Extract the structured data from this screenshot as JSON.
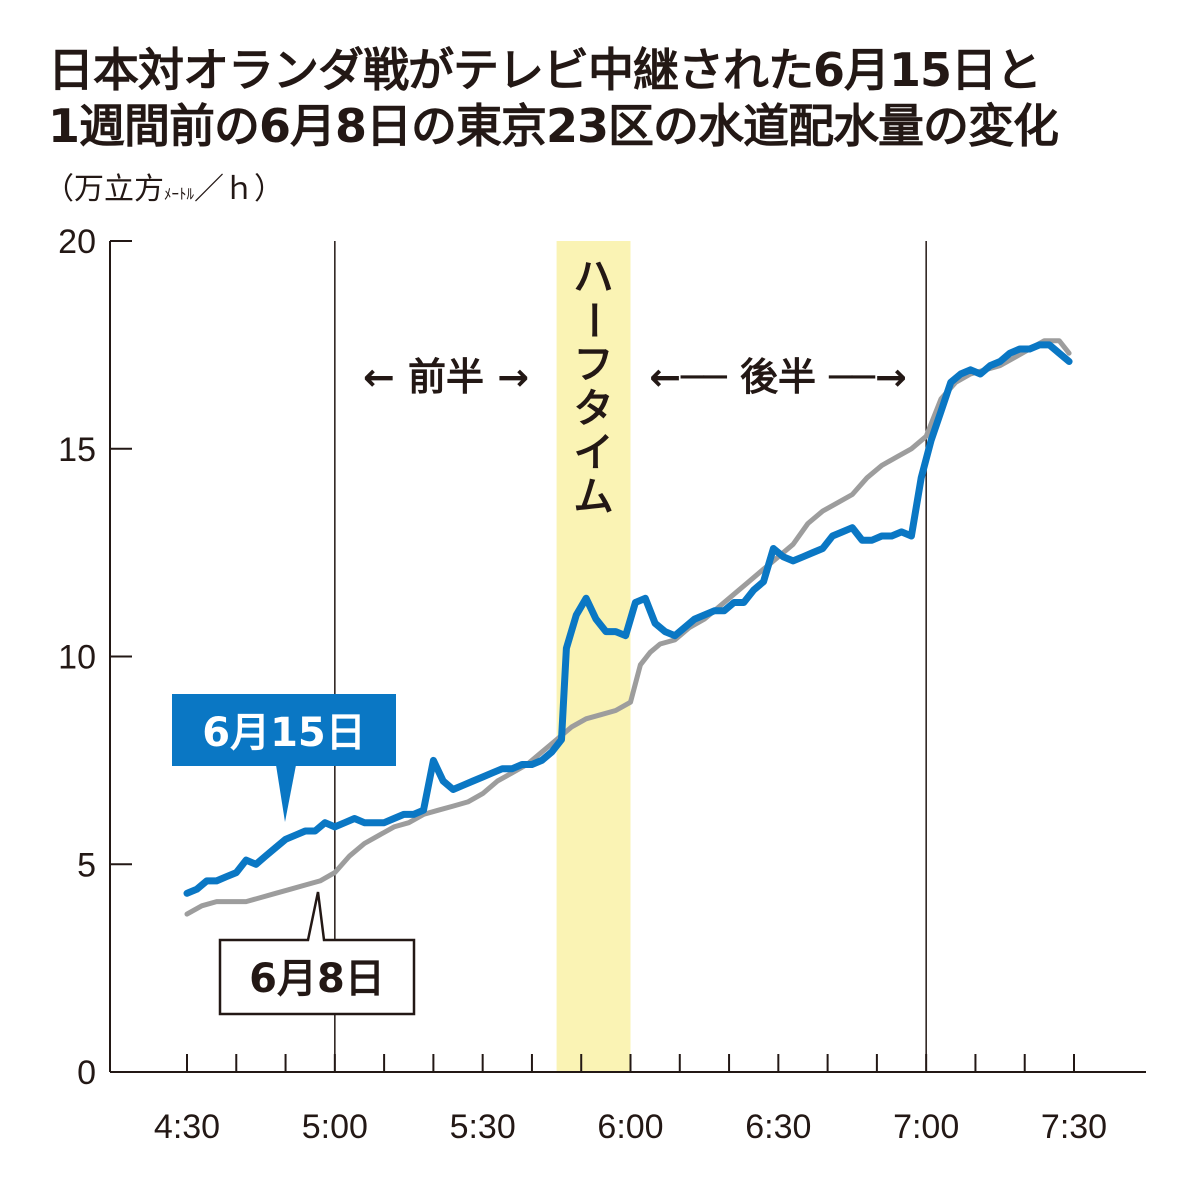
{
  "chart_data": {
    "type": "line",
    "title": "日本対オランダ戦がテレビ中継された6月15日と",
    "subtitle": "1週間前の6月8日の東京23区の水道配水量の変化",
    "ylabel": "（万立方",
    "ylabel_unit_small": "ﾒｰﾄﾙ",
    "ylabel_tail": "／ｈ）",
    "ylim": [
      0,
      20
    ],
    "xlim": [
      270,
      450
    ],
    "y_ticks": [
      "0",
      "5",
      "10",
      "15",
      "20"
    ],
    "x_ticks": [
      "4:30",
      "5:00",
      "5:30",
      "6:00",
      "6:30",
      "7:00",
      "7:30"
    ],
    "gridlines_minutes": [
      300,
      420
    ],
    "halftime": {
      "label": "ハーフタイム",
      "start": 345,
      "end": 360,
      "color": "#faf3b4"
    },
    "first_half_label": "← 前半 →",
    "second_half_label": "←── 後半 ──→",
    "series": [
      {
        "name": "6月15日",
        "color": "#0a77c4",
        "x": [
          270,
          272,
          274,
          276,
          278,
          280,
          282,
          284,
          286,
          288,
          290,
          292,
          294,
          296,
          298,
          300,
          302,
          304,
          306,
          308,
          310,
          312,
          314,
          316,
          318,
          320,
          322,
          324,
          326,
          328,
          330,
          332,
          334,
          336,
          338,
          340,
          342,
          344,
          346,
          347,
          349,
          351,
          353,
          355,
          357,
          359,
          361,
          363,
          365,
          367,
          369,
          371,
          373,
          375,
          377,
          379,
          381,
          383,
          385,
          387,
          389,
          391,
          393,
          395,
          397,
          399,
          401,
          403,
          405,
          407,
          409,
          411,
          413,
          415,
          417,
          419,
          421,
          423,
          425,
          427,
          429,
          431,
          433,
          435,
          437,
          439,
          441,
          443,
          445,
          447,
          449
        ],
        "values": [
          4.3,
          4.4,
          4.6,
          4.6,
          4.7,
          4.8,
          5.1,
          5.0,
          5.2,
          5.4,
          5.6,
          5.7,
          5.8,
          5.8,
          6.0,
          5.9,
          6.0,
          6.1,
          6.0,
          6.0,
          6.0,
          6.1,
          6.2,
          6.2,
          6.3,
          7.5,
          7.0,
          6.8,
          6.9,
          7.0,
          7.1,
          7.2,
          7.3,
          7.3,
          7.4,
          7.4,
          7.5,
          7.7,
          8.0,
          10.2,
          11.0,
          11.4,
          10.9,
          10.6,
          10.6,
          10.5,
          11.3,
          11.4,
          10.8,
          10.6,
          10.5,
          10.7,
          10.9,
          11.0,
          11.1,
          11.1,
          11.3,
          11.3,
          11.6,
          11.8,
          12.6,
          12.4,
          12.3,
          12.4,
          12.5,
          12.6,
          12.9,
          13.0,
          13.1,
          12.8,
          12.8,
          12.9,
          12.9,
          13.0,
          12.9,
          14.3,
          15.2,
          15.9,
          16.6,
          16.8,
          16.9,
          16.8,
          17.0,
          17.1,
          17.3,
          17.4,
          17.4,
          17.5,
          17.5,
          17.3,
          17.1
        ]
      },
      {
        "name": "6月8日",
        "color": "#9d9d9d",
        "x": [
          270,
          273,
          276,
          279,
          282,
          285,
          288,
          291,
          294,
          297,
          300,
          303,
          306,
          309,
          312,
          315,
          318,
          321,
          324,
          327,
          330,
          333,
          336,
          339,
          342,
          345,
          348,
          351,
          354,
          357,
          360,
          362,
          364,
          366,
          369,
          372,
          375,
          378,
          381,
          384,
          387,
          390,
          393,
          396,
          399,
          402,
          405,
          408,
          411,
          414,
          417,
          420,
          423,
          426,
          429,
          432,
          435,
          438,
          441,
          444,
          447,
          449
        ],
        "values": [
          3.8,
          4.0,
          4.1,
          4.1,
          4.1,
          4.2,
          4.3,
          4.4,
          4.5,
          4.6,
          4.8,
          5.2,
          5.5,
          5.7,
          5.9,
          6.0,
          6.2,
          6.3,
          6.4,
          6.5,
          6.7,
          7.0,
          7.2,
          7.4,
          7.7,
          8.0,
          8.3,
          8.5,
          8.6,
          8.7,
          8.9,
          9.8,
          10.1,
          10.3,
          10.4,
          10.7,
          10.9,
          11.2,
          11.5,
          11.8,
          12.1,
          12.4,
          12.7,
          13.2,
          13.5,
          13.7,
          13.9,
          14.3,
          14.6,
          14.8,
          15.0,
          15.3,
          16.2,
          16.6,
          16.8,
          16.9,
          17.0,
          17.2,
          17.4,
          17.6,
          17.6,
          17.3
        ]
      }
    ],
    "legend": {
      "placement": "callouts",
      "series_a": "6月15日",
      "series_b": "6月8日"
    }
  }
}
